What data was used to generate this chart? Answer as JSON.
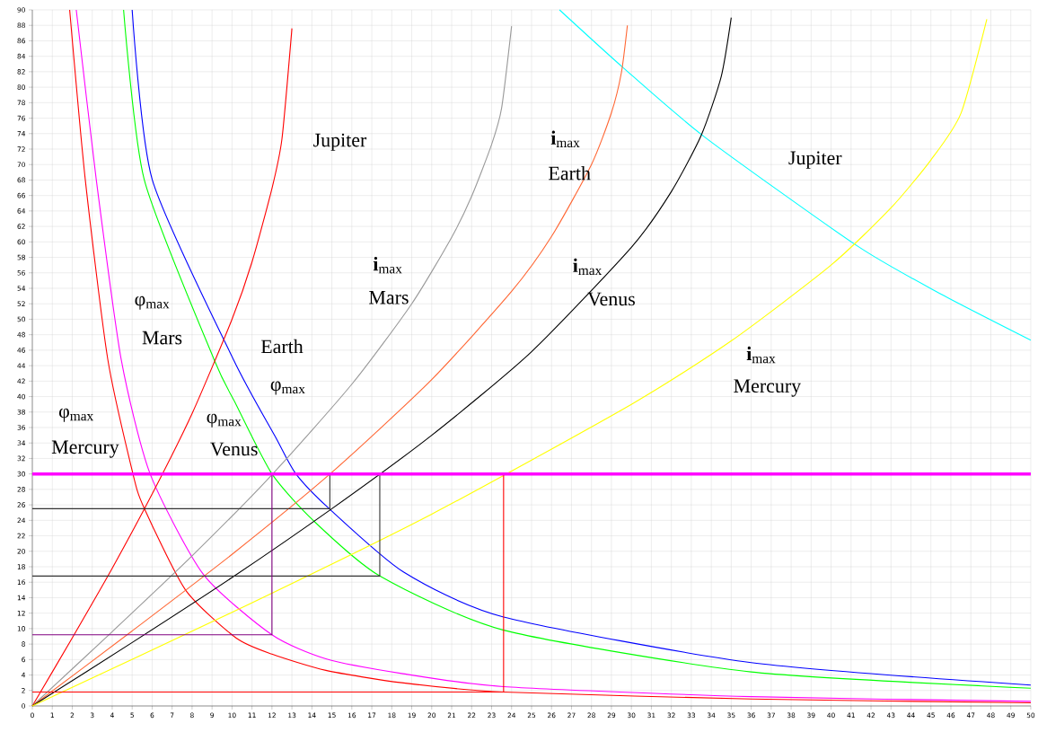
{
  "chart_data": {
    "type": "line",
    "xlim": [
      0,
      50
    ],
    "ylim": [
      0,
      90
    ],
    "xticks": [
      0,
      1,
      2,
      3,
      4,
      5,
      6,
      7,
      8,
      9,
      10,
      11,
      12,
      13,
      14,
      15,
      16,
      17,
      18,
      19,
      20,
      21,
      22,
      23,
      24,
      25,
      26,
      27,
      28,
      29,
      30,
      31,
      32,
      33,
      34,
      35,
      36,
      37,
      38,
      39,
      40,
      41,
      42,
      43,
      44,
      45,
      46,
      47,
      48,
      49,
      50
    ],
    "yticks": [
      0,
      2,
      4,
      6,
      8,
      10,
      12,
      14,
      16,
      18,
      20,
      22,
      24,
      26,
      28,
      30,
      32,
      34,
      36,
      38,
      40,
      42,
      44,
      46,
      48,
      50,
      52,
      54,
      56,
      58,
      60,
      62,
      64,
      66,
      68,
      70,
      72,
      74,
      76,
      78,
      80,
      82,
      84,
      86,
      88,
      90
    ],
    "grid": true,
    "marker": "none",
    "line_style": "solid",
    "series": [
      {
        "color": "#ff0000",
        "x": [
          1.87,
          2.65,
          3.78,
          5.04,
          5.58,
          7.67,
          10.2,
          12.0,
          14.7,
          18.5,
          23.6,
          36,
          50
        ],
        "values": [
          90,
          68.1,
          44.8,
          30,
          25.7,
          15.0,
          8.8,
          6.7,
          4.6,
          3.0,
          1.8,
          0.9,
          0.4
        ]
      },
      {
        "color": "#ff00ff",
        "x": [
          2.2,
          3.2,
          4.45,
          5.9,
          8.57,
          12.0,
          14.7,
          18.5,
          23.6,
          36,
          50
        ],
        "values": [
          90,
          68.1,
          44.8,
          30,
          17.0,
          9.2,
          6.1,
          4.2,
          2.5,
          1.2,
          0.6
        ]
      },
      {
        "color": "#00ff00",
        "x": [
          4.57,
          5.6,
          9.1,
          10.2,
          12.0,
          14.1,
          17.4,
          23.6,
          36,
          50
        ],
        "values": [
          90,
          68.1,
          44.8,
          39,
          30,
          23.9,
          16.8,
          9.8,
          4.4,
          2.3
        ]
      },
      {
        "color": "#0000ff",
        "x": [
          5.0,
          6.0,
          10.07,
          12.17,
          13.2,
          14.87,
          18.6,
          23.6,
          36,
          50
        ],
        "values": [
          90,
          68.1,
          44.8,
          34.8,
          30,
          25.5,
          17.3,
          11.5,
          5.6,
          2.7
        ]
      },
      {
        "color": "#00ffff",
        "x": [
          26.4,
          29.6,
          33.7,
          41.3,
          45.4,
          50
        ],
        "values": [
          90,
          82.5,
          73.5,
          59.5,
          53.4,
          47.3
        ]
      },
      {
        "color": "#ff0000",
        "x": [
          0,
          2,
          4,
          6,
          8,
          10,
          11,
          12,
          12.5,
          13.0
        ],
        "values": [
          0,
          8.8,
          17.8,
          27.4,
          37.8,
          50.0,
          57.4,
          66.9,
          73.3,
          87.6
        ]
      },
      {
        "color": "#999999",
        "x": [
          0,
          4,
          8,
          12,
          16,
          19,
          21,
          22,
          23,
          23.5,
          24
        ],
        "values": [
          0,
          9.6,
          19.4,
          29.9,
          41.6,
          52.0,
          60.6,
          65.9,
          72.6,
          77.3,
          87.9
        ]
      },
      {
        "color": "#ff6633",
        "x": [
          0,
          5,
          10,
          15,
          20,
          24,
          26,
          28,
          29,
          29.5,
          29.8
        ],
        "values": [
          0,
          9.7,
          19.6,
          30.2,
          42.2,
          53.6,
          60.7,
          70.0,
          76.7,
          81.9,
          88.0
        ]
      },
      {
        "color": "#000000",
        "x": [
          0,
          5,
          10,
          15,
          20,
          25,
          30,
          32,
          33.5,
          34.5,
          35
        ],
        "values": [
          0,
          8.2,
          16.6,
          25.5,
          35.0,
          45.8,
          59.3,
          66.5,
          73.8,
          81.4,
          89.0
        ]
      },
      {
        "color": "#ffff00",
        "x": [
          0,
          10,
          20,
          30,
          35,
          40,
          43,
          45,
          46.5,
          47.8
        ],
        "values": [
          0,
          12.1,
          24.8,
          39.0,
          47.2,
          57.0,
          64.4,
          70.6,
          76.6,
          88.8
        ]
      },
      {
        "color": "#333333",
        "x": [
          0,
          14.9,
          14.9
        ],
        "values": [
          25.5,
          25.5,
          30
        ]
      },
      {
        "color": "#333333",
        "x": [
          17.4,
          17.4,
          0
        ],
        "values": [
          30,
          16.8,
          16.8
        ]
      },
      {
        "color": "#800080",
        "x": [
          0,
          12,
          12
        ],
        "values": [
          9.2,
          9.2,
          30
        ]
      },
      {
        "color": "#ff0000",
        "x": [
          23.6,
          23.6,
          0
        ],
        "values": [
          30,
          1.8,
          1.8
        ]
      }
    ],
    "ref_lines": [
      {
        "axis": "y",
        "value": 30,
        "color": "#ff00ff"
      }
    ],
    "annotations": [
      "Jupiter",
      "Jupiter",
      "**i**$_{max}$",
      "Earth",
      "**i**$_{max}$",
      "Mars",
      "**i**$_{max}$",
      "Venus",
      "**i**$_{max}$",
      "Mercury",
      "φ$_{max}$",
      "Mars",
      "Earth",
      "φ$_{max}$",
      "φ$_{max}$",
      "Mercury",
      "φ$_{max}$",
      "Venus"
    ]
  }
}
